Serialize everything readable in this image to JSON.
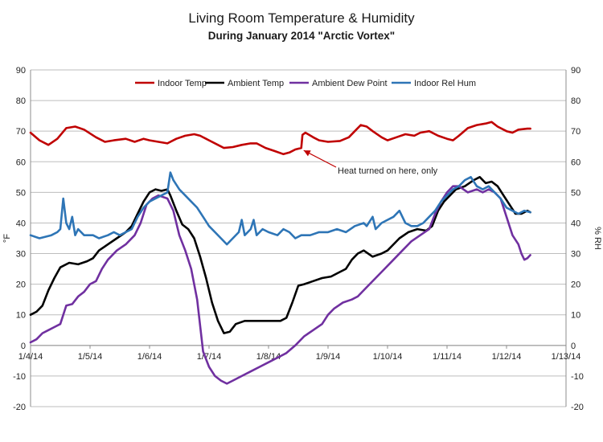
{
  "chart_data": {
    "type": "line",
    "title": "Living Room Temperature & Humidity",
    "subtitle": "During January 2014 \"Arctic Vortex\"",
    "ylabel_left": "°F",
    "ylabel_right": "% RH",
    "ylim": [
      -20,
      90
    ],
    "yticks": [
      -20,
      -10,
      0,
      10,
      20,
      30,
      40,
      50,
      60,
      70,
      80,
      90
    ],
    "x_tick_labels": [
      "1/4/14",
      "1/5/14",
      "1/6/14",
      "1/7/14",
      "1/8/14",
      "1/9/14",
      "1/10/14",
      "1/11/14",
      "1/12/14",
      "1/13/14"
    ],
    "xlim_days": [
      0,
      9
    ],
    "grid": true,
    "legend_position": "top",
    "series": [
      {
        "name": "Indoor Temp",
        "color": "#c00000",
        "points": [
          [
            0,
            69.5
          ],
          [
            0.15,
            67
          ],
          [
            0.3,
            65.5
          ],
          [
            0.45,
            67.5
          ],
          [
            0.6,
            71
          ],
          [
            0.75,
            71.5
          ],
          [
            0.9,
            70.5
          ],
          [
            1.1,
            68
          ],
          [
            1.25,
            66.5
          ],
          [
            1.4,
            67
          ],
          [
            1.6,
            67.5
          ],
          [
            1.75,
            66.5
          ],
          [
            1.9,
            67.5
          ],
          [
            2.0,
            67
          ],
          [
            2.15,
            66.5
          ],
          [
            2.3,
            66
          ],
          [
            2.45,
            67.5
          ],
          [
            2.6,
            68.5
          ],
          [
            2.75,
            69
          ],
          [
            2.85,
            68.5
          ],
          [
            3.0,
            67
          ],
          [
            3.15,
            65.5
          ],
          [
            3.25,
            64.5
          ],
          [
            3.4,
            64.8
          ],
          [
            3.55,
            65.5
          ],
          [
            3.7,
            66
          ],
          [
            3.8,
            66
          ],
          [
            3.95,
            64.5
          ],
          [
            4.1,
            63.5
          ],
          [
            4.25,
            62.5
          ],
          [
            4.35,
            63
          ],
          [
            4.45,
            64
          ],
          [
            4.55,
            64.5
          ],
          [
            4.57,
            68.8
          ],
          [
            4.62,
            69.5
          ],
          [
            4.75,
            68
          ],
          [
            4.85,
            67
          ],
          [
            5.0,
            66.5
          ],
          [
            5.2,
            66.8
          ],
          [
            5.35,
            68
          ],
          [
            5.45,
            70
          ],
          [
            5.55,
            72
          ],
          [
            5.65,
            71.5
          ],
          [
            5.75,
            70
          ],
          [
            5.9,
            68
          ],
          [
            6.0,
            67
          ],
          [
            6.15,
            68
          ],
          [
            6.3,
            69
          ],
          [
            6.45,
            68.5
          ],
          [
            6.55,
            69.5
          ],
          [
            6.7,
            70
          ],
          [
            6.85,
            68.5
          ],
          [
            7.0,
            67.5
          ],
          [
            7.1,
            67
          ],
          [
            7.2,
            68.5
          ],
          [
            7.35,
            71
          ],
          [
            7.5,
            72
          ],
          [
            7.65,
            72.5
          ],
          [
            7.75,
            73
          ],
          [
            7.85,
            71.5
          ],
          [
            8.0,
            70
          ],
          [
            8.1,
            69.5
          ],
          [
            8.2,
            70.5
          ],
          [
            8.35,
            70.8
          ],
          [
            8.4,
            70.8
          ]
        ]
      },
      {
        "name": "Ambient Temp",
        "color": "#000000",
        "points": [
          [
            0,
            10
          ],
          [
            0.1,
            11
          ],
          [
            0.2,
            13
          ],
          [
            0.3,
            18
          ],
          [
            0.4,
            22
          ],
          [
            0.5,
            25.5
          ],
          [
            0.65,
            27
          ],
          [
            0.8,
            26.5
          ],
          [
            0.95,
            27.5
          ],
          [
            1.05,
            28.5
          ],
          [
            1.15,
            31
          ],
          [
            1.3,
            33
          ],
          [
            1.45,
            35
          ],
          [
            1.6,
            37
          ],
          [
            1.7,
            39
          ],
          [
            1.8,
            43
          ],
          [
            1.9,
            47
          ],
          [
            2.0,
            50
          ],
          [
            2.1,
            51
          ],
          [
            2.2,
            50.5
          ],
          [
            2.3,
            51
          ],
          [
            2.35,
            49
          ],
          [
            2.45,
            44
          ],
          [
            2.55,
            39.5
          ],
          [
            2.65,
            38
          ],
          [
            2.75,
            35
          ],
          [
            2.85,
            29
          ],
          [
            2.95,
            22
          ],
          [
            3.05,
            14
          ],
          [
            3.15,
            8
          ],
          [
            3.25,
            4
          ],
          [
            3.35,
            4.5
          ],
          [
            3.45,
            7
          ],
          [
            3.6,
            8
          ],
          [
            3.8,
            8
          ],
          [
            4.0,
            8
          ],
          [
            4.2,
            8
          ],
          [
            4.3,
            9
          ],
          [
            4.4,
            14
          ],
          [
            4.5,
            19.5
          ],
          [
            4.6,
            20
          ],
          [
            4.75,
            21
          ],
          [
            4.9,
            22
          ],
          [
            5.05,
            22.5
          ],
          [
            5.2,
            24
          ],
          [
            5.3,
            25
          ],
          [
            5.4,
            28
          ],
          [
            5.5,
            30
          ],
          [
            5.6,
            31
          ],
          [
            5.75,
            29
          ],
          [
            5.9,
            30
          ],
          [
            6.0,
            31
          ],
          [
            6.1,
            33
          ],
          [
            6.2,
            35
          ],
          [
            6.35,
            37
          ],
          [
            6.5,
            38
          ],
          [
            6.65,
            37.5
          ],
          [
            6.75,
            39
          ],
          [
            6.85,
            44
          ],
          [
            6.95,
            47
          ],
          [
            7.05,
            49
          ],
          [
            7.15,
            51
          ],
          [
            7.3,
            52
          ],
          [
            7.45,
            54
          ],
          [
            7.55,
            55
          ],
          [
            7.65,
            53
          ],
          [
            7.75,
            53.5
          ],
          [
            7.85,
            52
          ],
          [
            7.95,
            49
          ],
          [
            8.05,
            46
          ],
          [
            8.15,
            43
          ],
          [
            8.25,
            43
          ],
          [
            8.35,
            44
          ],
          [
            8.4,
            43.5
          ]
        ]
      },
      {
        "name": "Ambient Dew Point",
        "color": "#7030a0",
        "points": [
          [
            0,
            1
          ],
          [
            0.1,
            2
          ],
          [
            0.2,
            4
          ],
          [
            0.3,
            5
          ],
          [
            0.4,
            6
          ],
          [
            0.5,
            7
          ],
          [
            0.6,
            13
          ],
          [
            0.7,
            13.5
          ],
          [
            0.8,
            16
          ],
          [
            0.9,
            17.5
          ],
          [
            1.0,
            20
          ],
          [
            1.1,
            21
          ],
          [
            1.2,
            25
          ],
          [
            1.3,
            28
          ],
          [
            1.45,
            31
          ],
          [
            1.6,
            33
          ],
          [
            1.75,
            36
          ],
          [
            1.85,
            40
          ],
          [
            1.95,
            46
          ],
          [
            2.05,
            48
          ],
          [
            2.15,
            49
          ],
          [
            2.3,
            48
          ],
          [
            2.4,
            44
          ],
          [
            2.5,
            36
          ],
          [
            2.6,
            31
          ],
          [
            2.7,
            25
          ],
          [
            2.8,
            15
          ],
          [
            2.9,
            -2
          ],
          [
            3.0,
            -7
          ],
          [
            3.1,
            -10
          ],
          [
            3.2,
            -11.5
          ],
          [
            3.3,
            -12.5
          ],
          [
            3.4,
            -11.5
          ],
          [
            3.55,
            -10
          ],
          [
            3.7,
            -8.5
          ],
          [
            3.85,
            -7
          ],
          [
            4.0,
            -5.5
          ],
          [
            4.15,
            -4
          ],
          [
            4.3,
            -2.5
          ],
          [
            4.45,
            0
          ],
          [
            4.6,
            3
          ],
          [
            4.75,
            5
          ],
          [
            4.9,
            7
          ],
          [
            5.0,
            10
          ],
          [
            5.1,
            12
          ],
          [
            5.25,
            14
          ],
          [
            5.4,
            15
          ],
          [
            5.5,
            16
          ],
          [
            5.65,
            19
          ],
          [
            5.8,
            22
          ],
          [
            5.95,
            25
          ],
          [
            6.1,
            28
          ],
          [
            6.25,
            31
          ],
          [
            6.4,
            34
          ],
          [
            6.55,
            36
          ],
          [
            6.7,
            38
          ],
          [
            6.8,
            43
          ],
          [
            6.9,
            47
          ],
          [
            7.0,
            50
          ],
          [
            7.1,
            52
          ],
          [
            7.2,
            52
          ],
          [
            7.35,
            50
          ],
          [
            7.5,
            51
          ],
          [
            7.6,
            50
          ],
          [
            7.7,
            51
          ],
          [
            7.8,
            50
          ],
          [
            7.9,
            48
          ],
          [
            8.0,
            42
          ],
          [
            8.1,
            36
          ],
          [
            8.2,
            33
          ],
          [
            8.25,
            30
          ],
          [
            8.3,
            28
          ],
          [
            8.35,
            28.5
          ],
          [
            8.4,
            29.5
          ]
        ]
      },
      {
        "name": "Indoor Rel Hum",
        "color": "#2e75b6",
        "points": [
          [
            0,
            36
          ],
          [
            0.15,
            35
          ],
          [
            0.35,
            36
          ],
          [
            0.45,
            37
          ],
          [
            0.5,
            38
          ],
          [
            0.55,
            48
          ],
          [
            0.6,
            40
          ],
          [
            0.65,
            38
          ],
          [
            0.7,
            42
          ],
          [
            0.75,
            36
          ],
          [
            0.8,
            38
          ],
          [
            0.9,
            36
          ],
          [
            1.05,
            36
          ],
          [
            1.15,
            35
          ],
          [
            1.3,
            36
          ],
          [
            1.4,
            37
          ],
          [
            1.5,
            36
          ],
          [
            1.6,
            37
          ],
          [
            1.7,
            38
          ],
          [
            1.8,
            42
          ],
          [
            1.9,
            45
          ],
          [
            2.0,
            47
          ],
          [
            2.1,
            48
          ],
          [
            2.2,
            49
          ],
          [
            2.3,
            50
          ],
          [
            2.35,
            56.5
          ],
          [
            2.4,
            54
          ],
          [
            2.5,
            51
          ],
          [
            2.6,
            49
          ],
          [
            2.7,
            47
          ],
          [
            2.8,
            45
          ],
          [
            2.9,
            42
          ],
          [
            3.0,
            39
          ],
          [
            3.1,
            37
          ],
          [
            3.2,
            35
          ],
          [
            3.3,
            33
          ],
          [
            3.4,
            35
          ],
          [
            3.5,
            37
          ],
          [
            3.55,
            41
          ],
          [
            3.6,
            36
          ],
          [
            3.7,
            38
          ],
          [
            3.75,
            41
          ],
          [
            3.8,
            36
          ],
          [
            3.9,
            38
          ],
          [
            4.0,
            37
          ],
          [
            4.15,
            36
          ],
          [
            4.25,
            38
          ],
          [
            4.35,
            37
          ],
          [
            4.45,
            35
          ],
          [
            4.55,
            36
          ],
          [
            4.7,
            36
          ],
          [
            4.85,
            37
          ],
          [
            5.0,
            37
          ],
          [
            5.15,
            38
          ],
          [
            5.3,
            37
          ],
          [
            5.45,
            39
          ],
          [
            5.6,
            40
          ],
          [
            5.65,
            39
          ],
          [
            5.75,
            42
          ],
          [
            5.8,
            38
          ],
          [
            5.9,
            40
          ],
          [
            6.0,
            41
          ],
          [
            6.1,
            42
          ],
          [
            6.2,
            44
          ],
          [
            6.3,
            40
          ],
          [
            6.4,
            39
          ],
          [
            6.5,
            39
          ],
          [
            6.6,
            40
          ],
          [
            6.7,
            42
          ],
          [
            6.8,
            44
          ],
          [
            6.9,
            47
          ],
          [
            7.0,
            49
          ],
          [
            7.1,
            51
          ],
          [
            7.2,
            52
          ],
          [
            7.3,
            54
          ],
          [
            7.4,
            55
          ],
          [
            7.5,
            52
          ],
          [
            7.6,
            51
          ],
          [
            7.7,
            52
          ],
          [
            7.8,
            50
          ],
          [
            7.9,
            48
          ],
          [
            8.0,
            45
          ],
          [
            8.1,
            44
          ],
          [
            8.2,
            43
          ],
          [
            8.3,
            44
          ],
          [
            8.4,
            43.5
          ]
        ]
      }
    ],
    "annotation": {
      "text": "Heat turned on here, only",
      "target": [
        4.55,
        64.5
      ]
    }
  }
}
